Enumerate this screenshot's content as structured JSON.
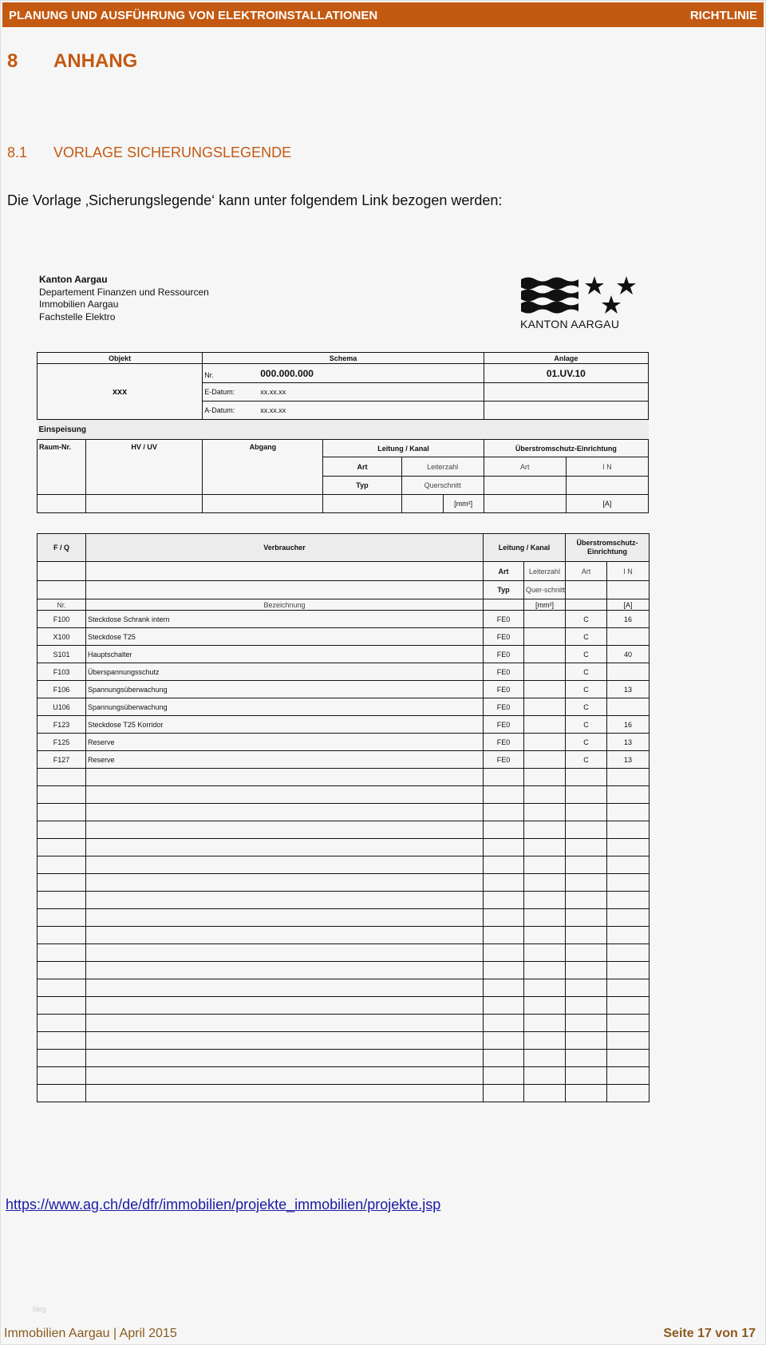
{
  "header": {
    "title": "PLANUNG UND AUSFÜHRUNG VON ELEKTROINSTALLATIONEN",
    "right": "RICHTLINIE",
    "color": "#c45911"
  },
  "section": {
    "number": "8",
    "title": "ANHANG"
  },
  "subsection": {
    "number": "8.1",
    "title": "VORLAGE SICHERUNGSLEGENDE"
  },
  "intro": "Die Vorlage ‚Sicherungslegende‘ kann unter folgendem Link bezogen werden:",
  "form": {
    "org": [
      "Kanton Aargau",
      "Departement Finanzen und Ressourcen",
      "Immobilien Aargau",
      "Fachstelle Elektro"
    ],
    "logo_text": "KANTON AARGAU",
    "top": {
      "objekt": "Objekt",
      "schema": "Schema",
      "anlage": "Anlage",
      "objekt_value": "xxx",
      "nr_label": "Nr.",
      "nr_value": "000.000.000",
      "anlage_value": "01.UV.10",
      "edatum_label": "E-Datum:",
      "edatum_value": "xx.xx.xx",
      "adatum_label": "A-Datum:",
      "adatum_value": "xx.xx.xx"
    },
    "einspeisung": {
      "title": "Einspeisung",
      "raum": "Raum-Nr.",
      "hvuv": "HV / UV",
      "abgang": "Abgang",
      "leitung": "Leitung / Kanal",
      "ueberstrom": "Überstromschutz-Einrichtung",
      "art": "Art",
      "leiterzahl": "Leiterzahl",
      "art2": "Art",
      "in": "I N",
      "typ": "Typ",
      "querschnitt": "Querschnitt",
      "mm2": "[mm²]",
      "a": "[A]"
    },
    "legend": {
      "fq": "F / Q",
      "verbraucher": "Verbraucher",
      "leitung": "Leitung / Kanal",
      "ueberstrom": "Überstromschutz-Einrichtung",
      "art": "Art",
      "leiterzahl": "Leiterzahl",
      "art2": "Art",
      "in": "I N",
      "typ": "Typ",
      "querschnitt": "Quer-schnitt",
      "nr": "Nr.",
      "bezeichnung": "Bezeichnung",
      "mm2": "[mm²]",
      "a": "[A]",
      "rows": [
        {
          "nr": "F100",
          "bez": "Steckdose Schrank intern",
          "art": "FE0",
          "q": "",
          "s": "C",
          "in": "16"
        },
        {
          "nr": "X100",
          "bez": "Steckdose T25",
          "art": "FE0",
          "q": "",
          "s": "C",
          "in": ""
        },
        {
          "nr": "S101",
          "bez": "Hauptschalter",
          "art": "FE0",
          "q": "",
          "s": "C",
          "in": "40"
        },
        {
          "nr": "F103",
          "bez": "Überspannungsschutz",
          "art": "FE0",
          "q": "",
          "s": "C",
          "in": ""
        },
        {
          "nr": "F106",
          "bez": "Spannungsüberwachung",
          "art": "FE0",
          "q": "",
          "s": "C",
          "in": "13"
        },
        {
          "nr": "U106",
          "bez": "Spannungsüberwachung",
          "art": "FE0",
          "q": "",
          "s": "C",
          "in": ""
        },
        {
          "nr": "F123",
          "bez": "Steckdose T25 Korridor",
          "art": "FE0",
          "q": "",
          "s": "C",
          "in": "16"
        },
        {
          "nr": "F125",
          "bez": "Reserve",
          "art": "FE0",
          "q": "",
          "s": "C",
          "in": "13"
        },
        {
          "nr": "F127",
          "bez": "Reserve",
          "art": "FE0",
          "q": "",
          "s": "C",
          "in": "13"
        }
      ]
    }
  },
  "link": "https://www.ag.ch/de/dfr/immobilien/projekte_immobilien/projekte.jsp",
  "watermark": "blog",
  "footer": {
    "left": "Immobilien Aargau | April 2015",
    "right": "Seite 17 von 17"
  }
}
